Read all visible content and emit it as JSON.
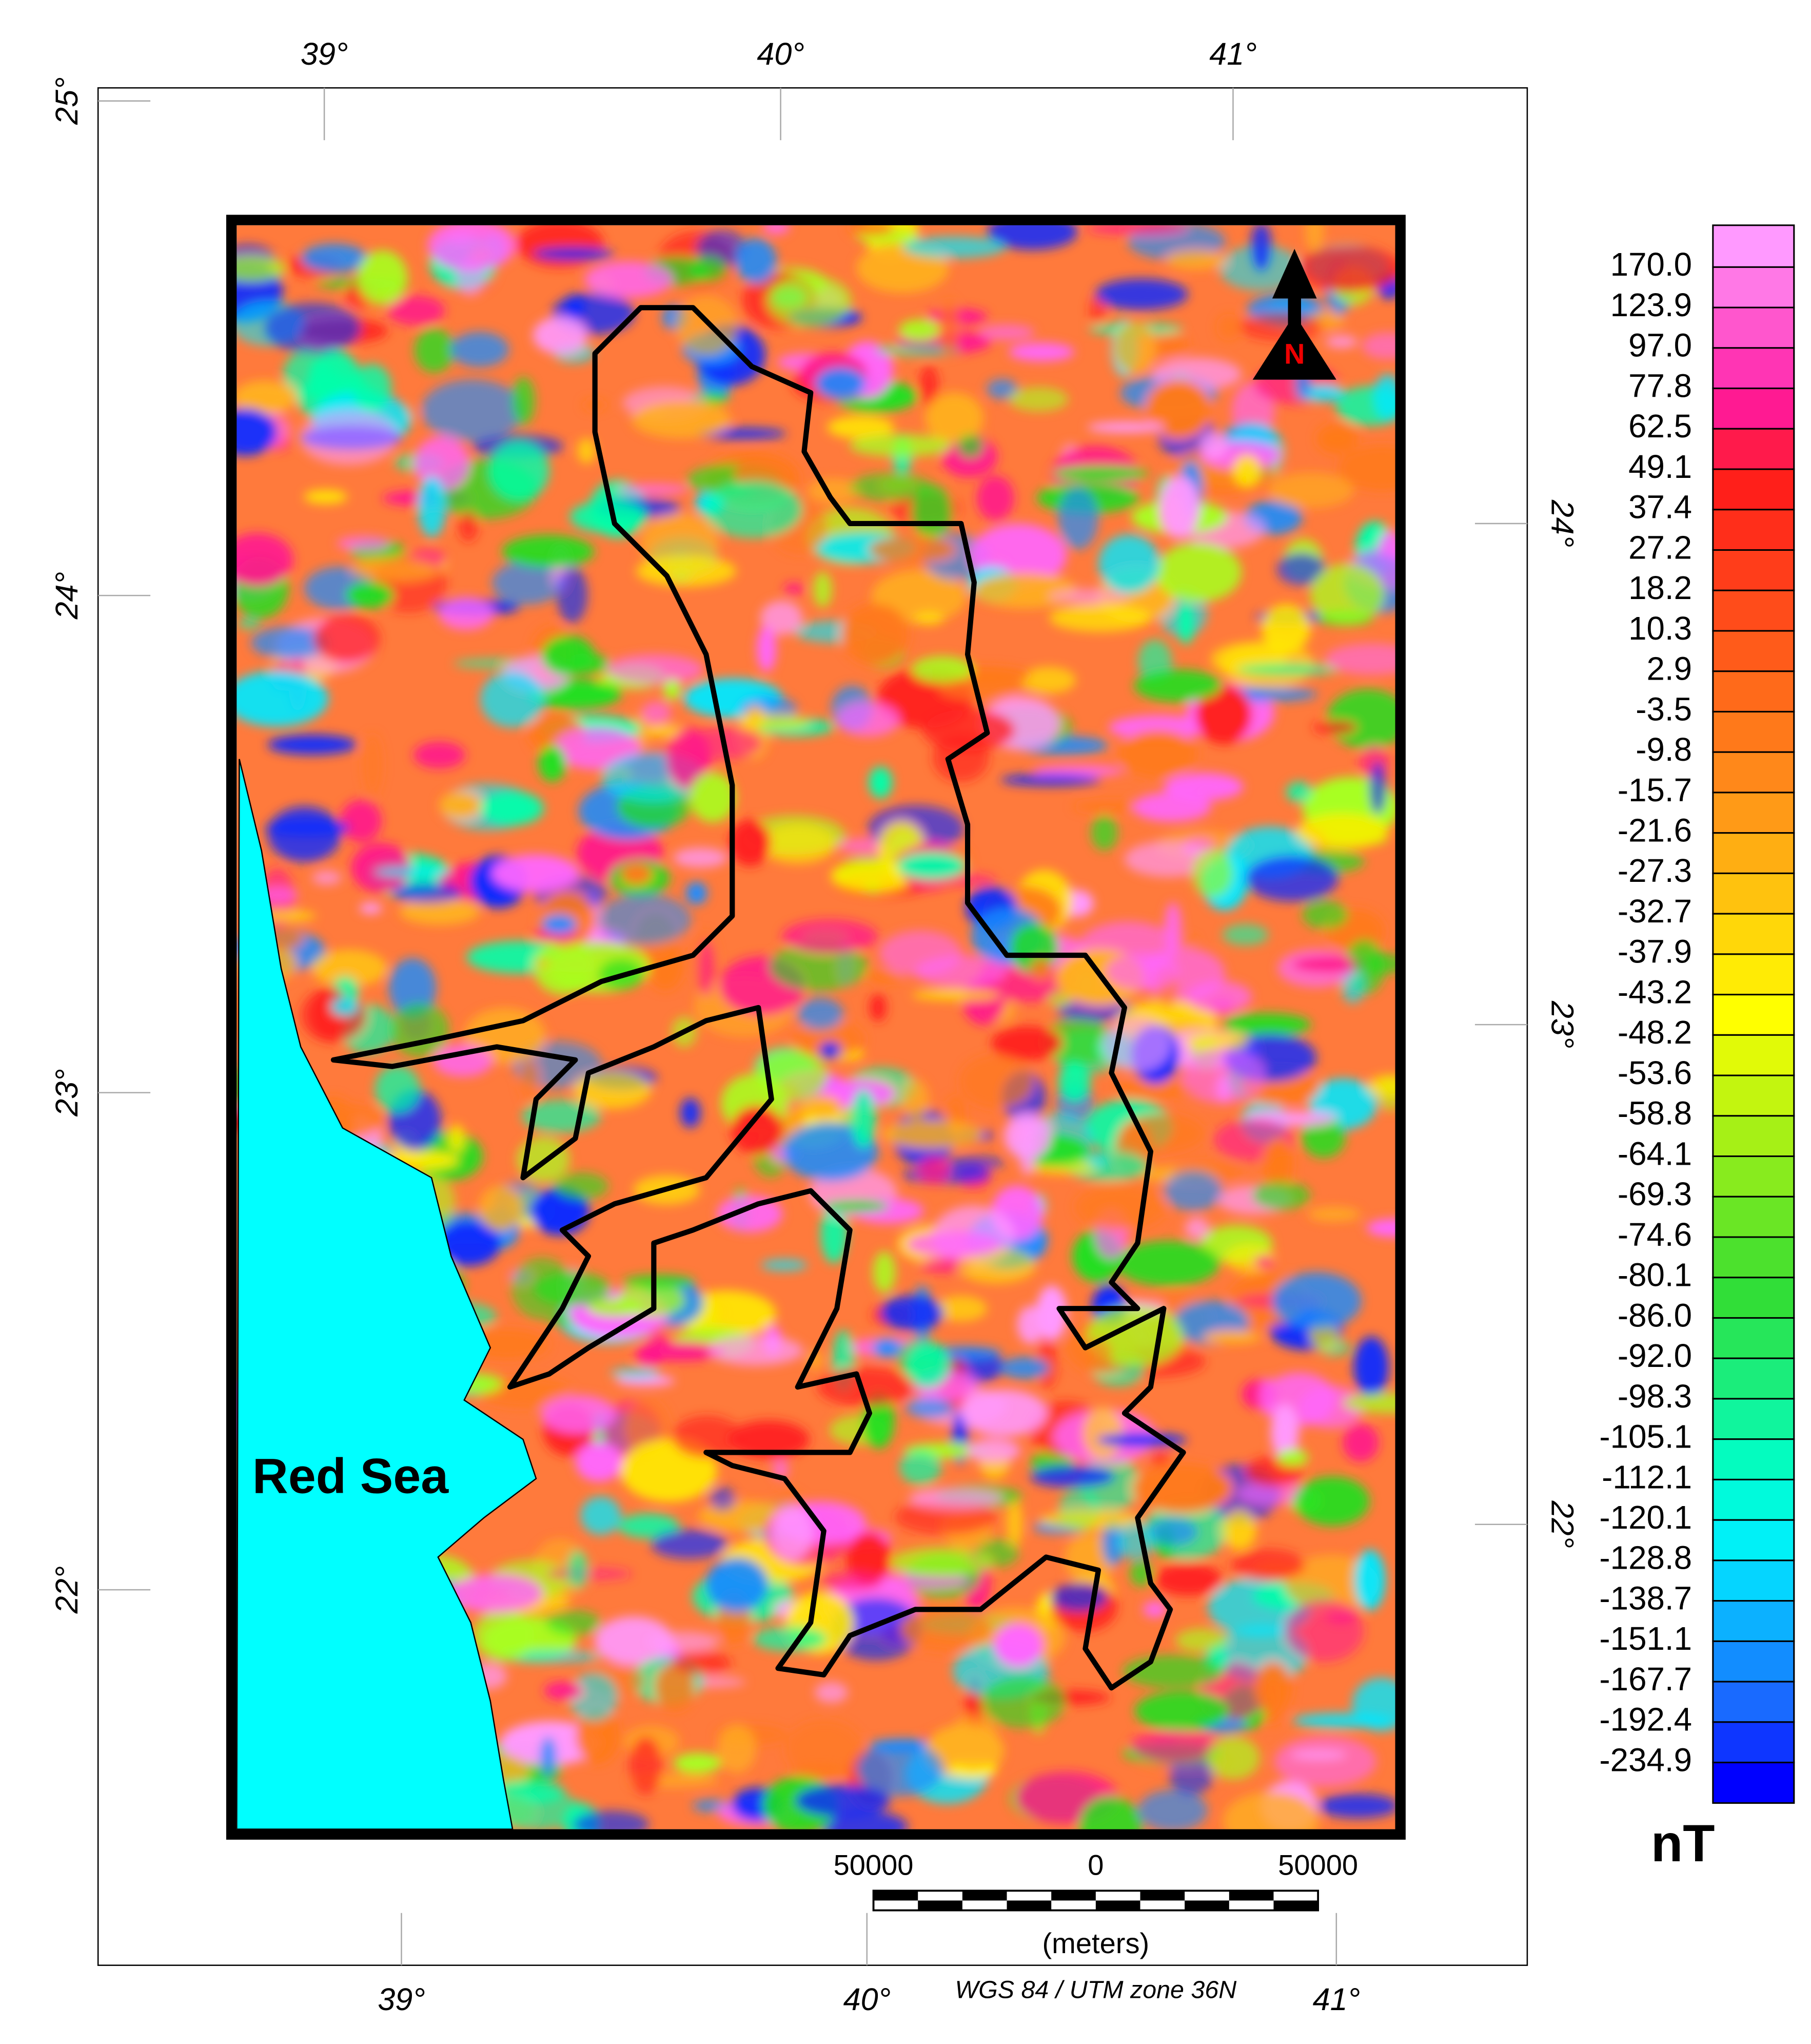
{
  "map": {
    "top_ticks": [
      "39°",
      "40°",
      "41°"
    ],
    "bottom_ticks": [
      "39°",
      "40°",
      "41°"
    ],
    "left_ticks": [
      "25°",
      "24°",
      "23°",
      "22°"
    ],
    "right_ticks": [
      "24°",
      "23°",
      "22°"
    ],
    "sea_label": "Red Sea",
    "north_label": "N",
    "scale_bar": {
      "labels": [
        "50000",
        "0",
        "50000"
      ],
      "unit": "(meters)"
    },
    "projection": "WGS 84 / UTM zone 36N"
  },
  "legend": {
    "labels": [
      "170.0",
      "123.9",
      "97.0",
      "77.8",
      "62.5",
      "49.1",
      "37.4",
      "27.2",
      "18.2",
      "10.3",
      "2.9",
      "-3.5",
      "-9.8",
      "-15.7",
      "-21.6",
      "-27.3",
      "-32.7",
      "-37.9",
      "-43.2",
      "-48.2",
      "-53.6",
      "-58.8",
      "-64.1",
      "-69.3",
      "-74.6",
      "-80.1",
      "-86.0",
      "-92.0",
      "-98.3",
      "-105.1",
      "-112.1",
      "-120.1",
      "-128.8",
      "-138.7",
      "-151.1",
      "-167.7",
      "-192.4",
      "-234.9"
    ],
    "unit": "nT"
  }
}
